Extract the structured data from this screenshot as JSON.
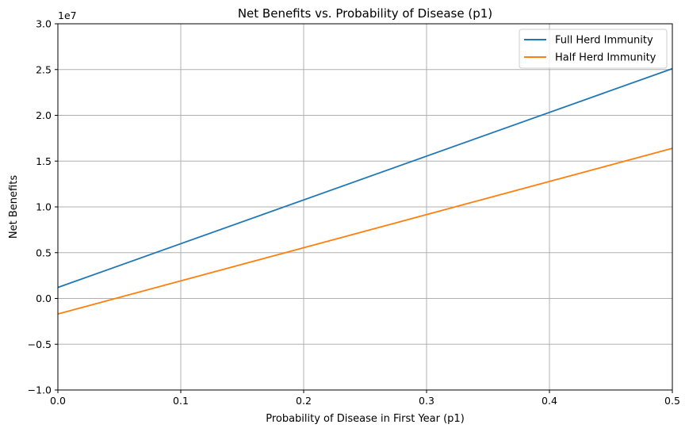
{
  "chart_data": {
    "type": "line",
    "title": "Net Benefits vs. Probability of Disease (p1)",
    "xlabel": "Probability of Disease in First Year (p1)",
    "ylabel": "Net Benefits",
    "y_offset_text": "1e7",
    "xlim": [
      0,
      0.5
    ],
    "ylim": [
      -1.0,
      3.0
    ],
    "y_scale_factor": 10000000,
    "x_ticks": [
      0.0,
      0.1,
      0.2,
      0.3,
      0.4,
      0.5
    ],
    "x_tick_labels": [
      "0.0",
      "0.1",
      "0.2",
      "0.3",
      "0.4",
      "0.5"
    ],
    "y_ticks": [
      -1.0,
      -0.5,
      0.0,
      0.5,
      1.0,
      1.5,
      2.0,
      2.5,
      3.0
    ],
    "y_tick_labels": [
      "−1.0",
      "−0.5",
      "0.0",
      "0.5",
      "1.0",
      "1.5",
      "2.0",
      "2.5",
      "3.0"
    ],
    "grid": true,
    "legend_position": "top-right",
    "series": [
      {
        "name": "Full Herd Immunity",
        "color": "#1f77b4",
        "x": [
          0.0,
          0.5
        ],
        "y": [
          0.12,
          2.51
        ]
      },
      {
        "name": "Half Herd Immunity",
        "color": "#ff7f0e",
        "x": [
          0.0,
          0.5
        ],
        "y": [
          -0.17,
          1.64
        ]
      }
    ]
  }
}
